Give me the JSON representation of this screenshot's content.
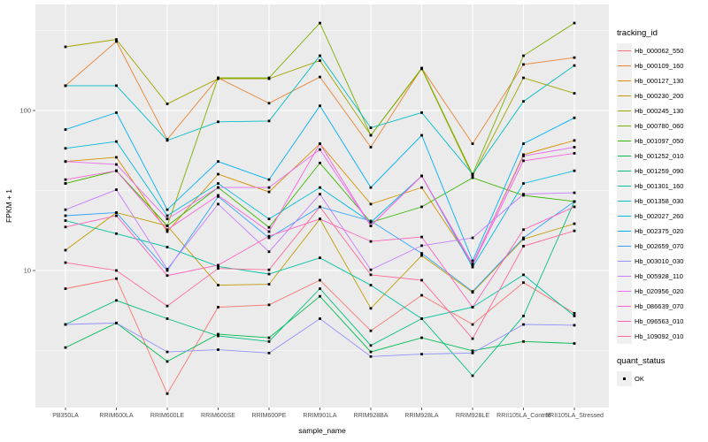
{
  "chart_data": {
    "type": "line",
    "title": "",
    "xlabel": "sample_name",
    "ylabel": "FPKM + 1",
    "y_scale": "log10",
    "y_tick_labels": [
      "100",
      "10"
    ],
    "y_tick_values": [
      100,
      10
    ],
    "y_minor_values": [
      316.23,
      31.623,
      3.1623
    ],
    "ylim": [
      1.4,
      460
    ],
    "grid": true,
    "panel_bg": "#EBEBEB",
    "grid_color": "#FFFFFF",
    "axis_text_color": "#4D4D4D",
    "point_marker": "black-square",
    "legend_position": "right",
    "x_categories": [
      "PB350LA",
      "RRIM600LA",
      "RRIM600LE",
      "RRIM600SE",
      "RRIM600PE",
      "RRIM901LA",
      "RRIM928BA",
      "RRIM928LA",
      "RRIM928LE",
      "RRII105LA_Control",
      "RRII105LA_Stressed"
    ],
    "series": [
      {
        "name": "Hb_000062_550",
        "color": "#F8766D",
        "values": [
          7.7,
          8.9,
          1.7,
          5.9,
          6.1,
          8.7,
          4.2,
          7.0,
          4.6,
          8.4,
          5.4
        ]
      },
      {
        "name": "Hb_000109_160",
        "color": "#EA8331",
        "values": [
          143,
          270,
          66,
          160,
          111,
          162,
          59,
          184,
          62,
          194,
          214
        ]
      },
      {
        "name": "Hb_000127_130",
        "color": "#D89000",
        "values": [
          48,
          51,
          17.5,
          40,
          31,
          62,
          26,
          33,
          11,
          53,
          65
        ]
      },
      {
        "name": "Hb_000230_200",
        "color": "#C09B00",
        "values": [
          13.4,
          23,
          19,
          8.1,
          8.2,
          21,
          5.8,
          12.4,
          7.3,
          15.7,
          19.6
        ]
      },
      {
        "name": "Hb_000245_130",
        "color": "#A3A500",
        "values": [
          250,
          278,
          110,
          158,
          158,
          205,
          70,
          182,
          39,
          160,
          128
        ]
      },
      {
        "name": "Hb_000780_060",
        "color": "#7CAE00",
        "values": [
          35,
          42,
          19,
          160,
          160,
          352,
          70,
          184,
          40,
          220,
          352
        ]
      },
      {
        "name": "Hb_001097_050",
        "color": "#39B600",
        "values": [
          35,
          42,
          19,
          33,
          18.6,
          47,
          20,
          25,
          38,
          29.5,
          27
        ]
      },
      {
        "name": "Hb_001252_010",
        "color": "#00BB4E",
        "values": [
          3.3,
          4.7,
          2.7,
          4.0,
          3.8,
          6.9,
          3.1,
          3.8,
          3.15,
          3.6,
          3.5
        ]
      },
      {
        "name": "Hb_001259_090",
        "color": "#00BF7D",
        "values": [
          4.6,
          6.5,
          5.0,
          3.9,
          3.6,
          7.7,
          3.4,
          5.0,
          2.2,
          5.2,
          27
        ]
      },
      {
        "name": "Hb_001301_160",
        "color": "#00C1A3",
        "values": [
          20.5,
          17,
          14,
          10.6,
          9.5,
          12,
          8.1,
          5.0,
          5.9,
          9.4,
          5.2
        ]
      },
      {
        "name": "Hb_001358_030",
        "color": "#00BFC4",
        "values": [
          143,
          143,
          65,
          85,
          86,
          220,
          78,
          97,
          40,
          114,
          191
        ]
      },
      {
        "name": "Hb_002027_260",
        "color": "#00BAE0",
        "values": [
          58,
          64,
          22,
          35,
          21,
          33,
          20,
          39,
          10.5,
          35,
          42
        ]
      },
      {
        "name": "Hb_002375_020",
        "color": "#00B0F6",
        "values": [
          76,
          97,
          24,
          48,
          37,
          107,
          33,
          70,
          11.5,
          62,
          90
        ]
      },
      {
        "name": "Hb_002659_070",
        "color": "#35A2FF",
        "values": [
          22,
          23,
          10,
          29,
          16,
          25,
          20.4,
          12.8,
          7.4,
          16,
          27
        ]
      },
      {
        "name": "Hb_003010_030",
        "color": "#9590FF",
        "values": [
          4.6,
          4.7,
          3.1,
          3.2,
          3.05,
          5.0,
          2.9,
          3.0,
          3.05,
          4.6,
          4.55
        ]
      },
      {
        "name": "Hb_005928_110",
        "color": "#C77CFF",
        "values": [
          24,
          32,
          10.2,
          26,
          13.1,
          30,
          10.1,
          14.3,
          16,
          30,
          30.6
        ]
      },
      {
        "name": "Hb_020956_020",
        "color": "#E76BF3",
        "values": [
          48,
          46,
          21,
          33,
          33,
          57,
          19,
          39,
          11,
          52,
          59
        ]
      },
      {
        "name": "Hb_086639_070",
        "color": "#FA62DB",
        "values": [
          37,
          42,
          18,
          29.5,
          17.5,
          62,
          19,
          39,
          10.8,
          48.5,
          54
        ]
      },
      {
        "name": "Hb_096563_010",
        "color": "#FF62BC",
        "values": [
          18.7,
          22,
          9.3,
          10.8,
          16.4,
          21,
          15.2,
          16.2,
          5.9,
          18,
          25
        ]
      },
      {
        "name": "Hb_109092_010",
        "color": "#FF6A98",
        "values": [
          11.2,
          10,
          6.0,
          10.3,
          10.1,
          25,
          9.4,
          8.7,
          3.75,
          14.2,
          17.7
        ]
      }
    ],
    "legends": {
      "tracking": {
        "title": "tracking_id"
      },
      "quant": {
        "title": "quant_status",
        "items": [
          {
            "label": "OK",
            "marker": "black-square"
          }
        ]
      }
    }
  }
}
